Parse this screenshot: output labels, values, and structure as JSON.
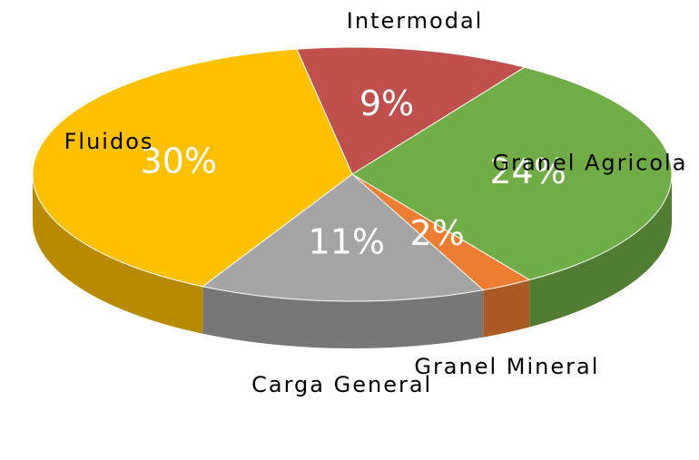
{
  "chart_data": {
    "type": "pie",
    "categories": [
      "Intermodal",
      "Granel Agricola",
      "Granel Mineral",
      "Carga General",
      "Fluidos"
    ],
    "values": [
      9,
      24,
      2,
      11,
      30
    ],
    "value_labels": [
      "9%",
      "24%",
      "2%",
      "11%",
      "30%"
    ],
    "colors": [
      "#c0504d",
      "#70ad47",
      "#ed7d31",
      "#a5a5a5",
      "#ffc000"
    ]
  }
}
